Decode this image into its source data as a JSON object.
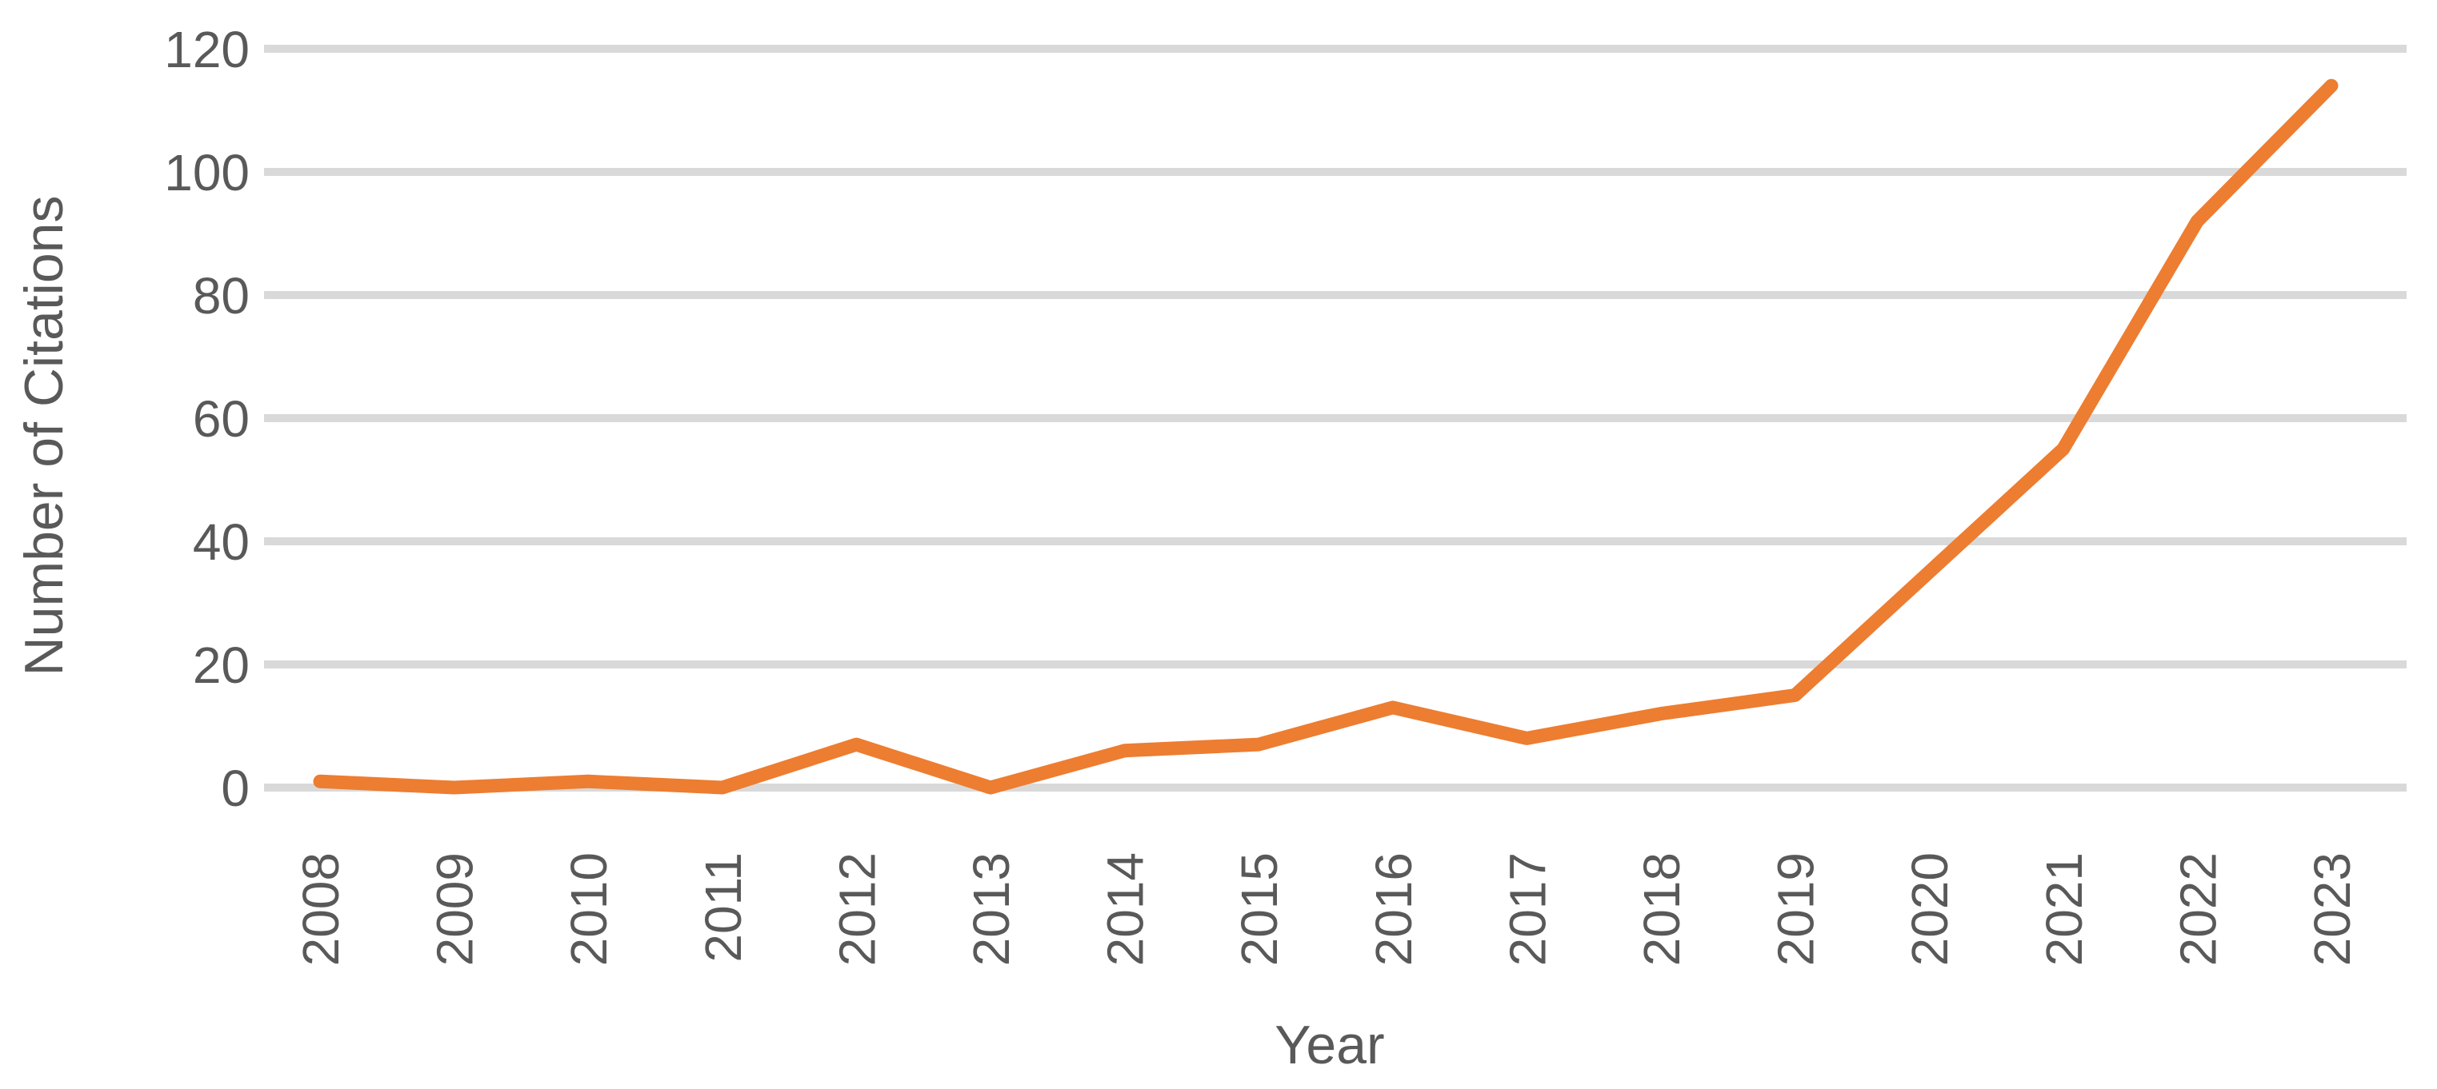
{
  "chart_data": {
    "type": "line",
    "title": "",
    "categories": [
      "2008",
      "2009",
      "2010",
      "2011",
      "2012",
      "2013",
      "2014",
      "2015",
      "2016",
      "2017",
      "2018",
      "2019",
      "2020",
      "2021",
      "2022",
      "2023"
    ],
    "series": [
      {
        "name": "Number of Citations",
        "values": [
          1,
          0,
          1,
          0,
          7,
          0,
          6,
          7,
          13,
          8,
          12,
          15,
          35,
          55,
          92,
          114
        ]
      }
    ],
    "xlabel": "Year",
    "ylabel": "Number of Citations",
    "ylim": [
      0,
      120
    ],
    "yticks": [
      0,
      20,
      40,
      60,
      80,
      100,
      120
    ],
    "grid": true,
    "legend_position": "none",
    "colors": {
      "line": "#ED7D31",
      "gridline": "#D9D9D9",
      "text": "#595959",
      "background": "#FFFFFF"
    }
  }
}
